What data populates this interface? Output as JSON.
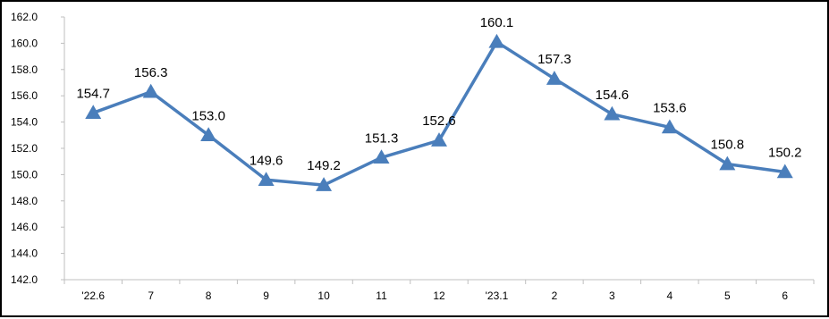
{
  "chart_data": {
    "type": "line",
    "categories": [
      "'22.6",
      "7",
      "8",
      "9",
      "10",
      "11",
      "12",
      "'23.1",
      "2",
      "3",
      "4",
      "5",
      "6"
    ],
    "series": [
      {
        "values": [
          154.7,
          156.3,
          153.0,
          149.6,
          149.2,
          151.3,
          152.6,
          160.1,
          157.3,
          154.6,
          153.6,
          150.8,
          150.2
        ]
      }
    ],
    "data_labels": [
      "154.7",
      "156.3",
      "153.0",
      "149.6",
      "149.2",
      "151.3",
      "152.6",
      "160.1",
      "157.3",
      "154.6",
      "153.6",
      "150.8",
      "150.2"
    ],
    "yticks": [
      "142.0",
      "144.0",
      "146.0",
      "148.0",
      "150.0",
      "152.0",
      "154.0",
      "156.0",
      "158.0",
      "160.0",
      "162.0"
    ],
    "ylim": [
      142.0,
      162.0
    ],
    "title": "",
    "xlabel": "",
    "ylabel": "",
    "grid": false,
    "legend": "none",
    "colors": {
      "line": "#4a7ebb",
      "marker": "#4a7ebb",
      "axis": "#bfbfbf",
      "text": "#000000"
    }
  }
}
